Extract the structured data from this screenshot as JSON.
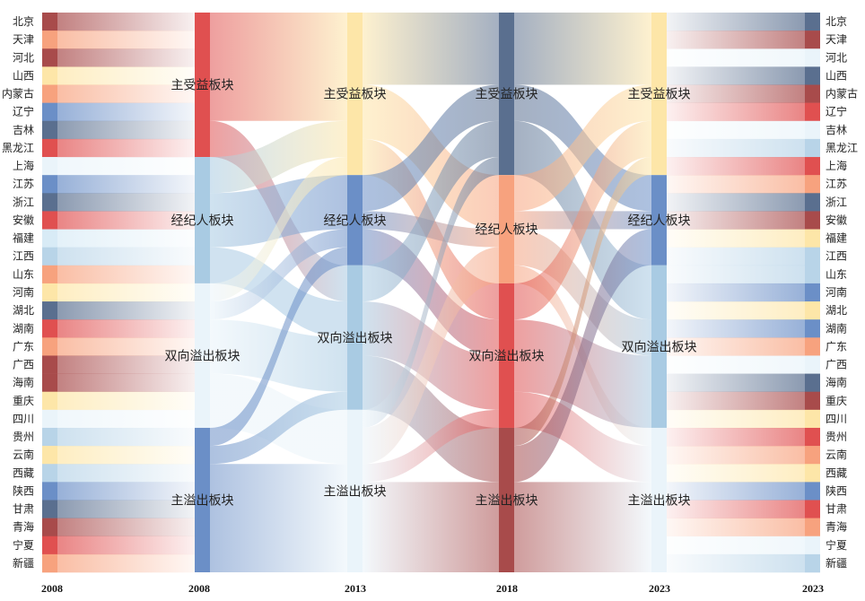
{
  "provinces_left": [
    "北京",
    "天津",
    "河北",
    "山西",
    "内蒙古",
    "辽宁",
    "吉林",
    "黑龙江",
    "上海",
    "江苏",
    "浙江",
    "安徽",
    "福建",
    "江西",
    "山东",
    "河南",
    "湖北",
    "湖南",
    "广东",
    "广西",
    "海南",
    "重庆",
    "四川",
    "贵州",
    "云南",
    "西藏",
    "陕西",
    "甘肃",
    "青海",
    "宁夏",
    "新疆"
  ],
  "provinces_right": [
    "北京",
    "天津",
    "河北",
    "山西",
    "内蒙古",
    "辽宁",
    "吉林",
    "黑龙江",
    "上海",
    "江苏",
    "浙江",
    "安徽",
    "福建",
    "江西",
    "山东",
    "河南",
    "湖北",
    "湖南",
    "广东",
    "广西",
    "海南",
    "重庆",
    "四川",
    "贵州",
    "云南",
    "西藏",
    "陕西",
    "甘肃",
    "青海",
    "宁夏",
    "新疆"
  ],
  "left_colors": [
    "#a84b4b",
    "#f7a27e",
    "#a84b4b",
    "#fde6a8",
    "#f7a27e",
    "#6b8fc7",
    "#5a6f8f",
    "#e05050",
    "#eaf4fa",
    "#6b8fc7",
    "#5a6f8f",
    "#e05050",
    "#d8ebf6",
    "#b8d4e8",
    "#f7a27e",
    "#fde6a8",
    "#5a6f8f",
    "#e05050",
    "#f7a27e",
    "#a84b4b",
    "#a84b4b",
    "#fde6a8",
    "#eaf4fa",
    "#b8d4e8",
    "#fde6a8",
    "#b8d4e8",
    "#6b8fc7",
    "#5a6f8f",
    "#a84b4b",
    "#e05050",
    "#f7a27e"
  ],
  "right_colors": [
    "#5a6f8f",
    "#a84b4b",
    "#eaf4fa",
    "#5a6f8f",
    "#a84b4b",
    "#e05050",
    "#eaf4fa",
    "#b8d4e8",
    "#e05050",
    "#f7a27e",
    "#5a6f8f",
    "#a84b4b",
    "#fde6a8",
    "#b8d4e8",
    "#b8d4e8",
    "#6b8fc7",
    "#fde6a8",
    "#6b8fc7",
    "#f7a27e",
    "#eaf4fa",
    "#5a6f8f",
    "#a84b4b",
    "#fde6a8",
    "#e05050",
    "#f7a27e",
    "#fde6a8",
    "#6b8fc7",
    "#e05050",
    "#f7a27e",
    "#eaf4fa",
    "#b8d4e8"
  ],
  "column_labels": [
    "2008",
    "2008",
    "2013",
    "2018",
    "2023",
    "2023"
  ],
  "columns": [
    {
      "nodes": [
        {
          "label": "主受益板块",
          "color": "#e05050",
          "size": 8
        },
        {
          "label": "经纪人板块",
          "color": "#a9cbe3",
          "size": 7
        },
        {
          "label": "双向溢出板块",
          "color": "#eaf4fa",
          "size": 8
        },
        {
          "label": "主溢出板块",
          "color": "#6b8fc7",
          "size": 8
        }
      ]
    },
    {
      "nodes": [
        {
          "label": "主受益板块",
          "color": "#fde6a8",
          "size": 9
        },
        {
          "label": "经纪人板块",
          "color": "#6b8fc7",
          "size": 5
        },
        {
          "label": "双向溢出板块",
          "color": "#a9cbe3",
          "size": 8
        },
        {
          "label": "主溢出板块",
          "color": "#eaf4fa",
          "size": 9
        }
      ]
    },
    {
      "nodes": [
        {
          "label": "主受益板块",
          "color": "#5a6f8f",
          "size": 9
        },
        {
          "label": "经纪人板块",
          "color": "#f7a27e",
          "size": 6
        },
        {
          "label": "双向溢出板块",
          "color": "#e05050",
          "size": 8
        },
        {
          "label": "主溢出板块",
          "color": "#a84b4b",
          "size": 8
        }
      ]
    },
    {
      "nodes": [
        {
          "label": "主受益板块",
          "color": "#fde6a8",
          "size": 9
        },
        {
          "label": "经纪人板块",
          "color": "#6b8fc7",
          "size": 5
        },
        {
          "label": "双向溢出板块",
          "color": "#a9cbe3",
          "size": 9
        },
        {
          "label": "主溢出板块",
          "color": "#eaf4fa",
          "size": 8
        }
      ]
    }
  ],
  "flows": [
    [
      {
        "from": 0,
        "to": 0,
        "value": 6
      },
      {
        "from": 0,
        "to": 2,
        "value": 2
      },
      {
        "from": 1,
        "to": 0,
        "value": 2
      },
      {
        "from": 1,
        "to": 1,
        "value": 3
      },
      {
        "from": 1,
        "to": 2,
        "value": 2
      },
      {
        "from": 2,
        "to": 0,
        "value": 1
      },
      {
        "from": 2,
        "to": 1,
        "value": 1
      },
      {
        "from": 2,
        "to": 2,
        "value": 3
      },
      {
        "from": 2,
        "to": 3,
        "value": 3
      },
      {
        "from": 3,
        "to": 1,
        "value": 1
      },
      {
        "from": 3,
        "to": 2,
        "value": 1
      },
      {
        "from": 3,
        "to": 3,
        "value": 6
      }
    ],
    [
      {
        "from": 0,
        "to": 0,
        "value": 4
      },
      {
        "from": 0,
        "to": 1,
        "value": 3
      },
      {
        "from": 0,
        "to": 2,
        "value": 2
      },
      {
        "from": 1,
        "to": 0,
        "value": 2
      },
      {
        "from": 1,
        "to": 1,
        "value": 1
      },
      {
        "from": 1,
        "to": 2,
        "value": 2
      },
      {
        "from": 2,
        "to": 0,
        "value": 2
      },
      {
        "from": 2,
        "to": 2,
        "value": 3
      },
      {
        "from": 2,
        "to": 3,
        "value": 3
      },
      {
        "from": 3,
        "to": 0,
        "value": 1
      },
      {
        "from": 3,
        "to": 1,
        "value": 2
      },
      {
        "from": 3,
        "to": 2,
        "value": 1
      },
      {
        "from": 3,
        "to": 3,
        "value": 5
      }
    ],
    [
      {
        "from": 0,
        "to": 0,
        "value": 4
      },
      {
        "from": 0,
        "to": 1,
        "value": 2
      },
      {
        "from": 0,
        "to": 2,
        "value": 3
      },
      {
        "from": 1,
        "to": 0,
        "value": 2
      },
      {
        "from": 1,
        "to": 1,
        "value": 1
      },
      {
        "from": 1,
        "to": 2,
        "value": 2
      },
      {
        "from": 1,
        "to": 3,
        "value": 1
      },
      {
        "from": 2,
        "to": 0,
        "value": 2
      },
      {
        "from": 2,
        "to": 2,
        "value": 4
      },
      {
        "from": 2,
        "to": 3,
        "value": 2
      },
      {
        "from": 3,
        "to": 0,
        "value": 1
      },
      {
        "from": 3,
        "to": 1,
        "value": 2
      },
      {
        "from": 3,
        "to": 3,
        "value": 5
      }
    ]
  ]
}
